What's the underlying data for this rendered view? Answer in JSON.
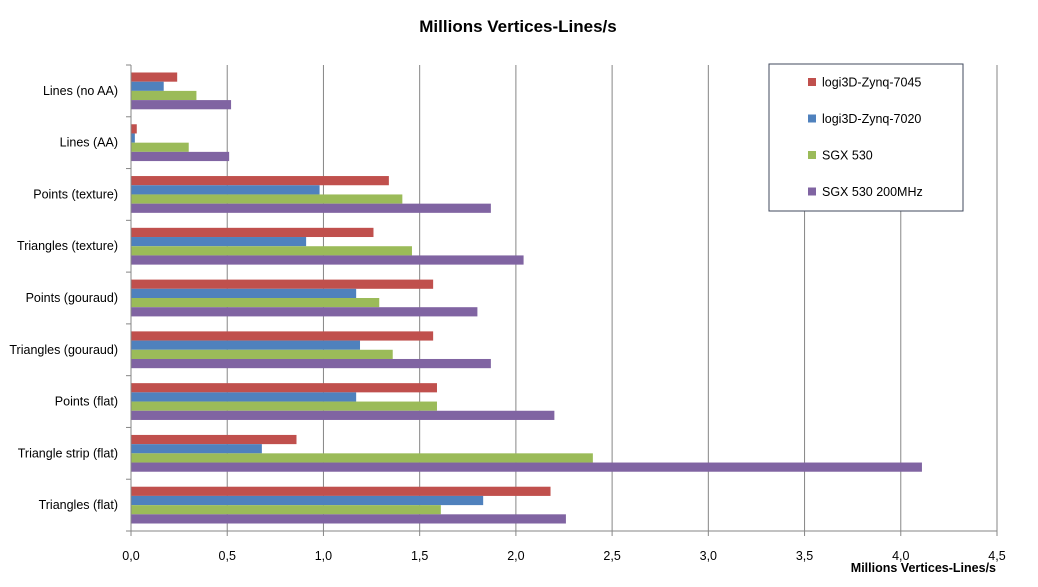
{
  "chart_data": {
    "type": "bar",
    "orientation": "horizontal",
    "title": "Millions Vertices-Lines/s",
    "xlabel": "Millions  Vertices-Lines/s",
    "ylabel": "",
    "xlim": [
      0,
      4.5
    ],
    "x_ticks": [
      0.0,
      0.5,
      1.0,
      1.5,
      2.0,
      2.5,
      3.0,
      3.5,
      4.0,
      4.5
    ],
    "x_tick_labels": [
      "0,0",
      "0,5",
      "1,0",
      "1,5",
      "2,0",
      "2,5",
      "3,0",
      "3,5",
      "4,0",
      "4,5"
    ],
    "grid": "vertical",
    "legend_position": "top-right",
    "categories": [
      "Lines (no AA)",
      "Lines (AA)",
      "Points (texture)",
      "Triangles (texture)",
      "Points (gouraud)",
      "Triangles (gouraud)",
      "Points (flat)",
      "Triangle strip (flat)",
      "Triangles (flat)"
    ],
    "series": [
      {
        "name": "logi3D-Zynq-7045",
        "color": "#c0504d",
        "values": [
          0.24,
          0.03,
          1.34,
          1.26,
          1.57,
          1.57,
          1.59,
          0.86,
          2.18
        ]
      },
      {
        "name": "logi3D-Zynq-7020",
        "color": "#4f81bd",
        "values": [
          0.17,
          0.02,
          0.98,
          0.91,
          1.17,
          1.19,
          1.17,
          0.68,
          1.83
        ]
      },
      {
        "name": "SGX 530",
        "color": "#9bbb59",
        "values": [
          0.34,
          0.3,
          1.41,
          1.46,
          1.29,
          1.36,
          1.59,
          2.4,
          1.61
        ]
      },
      {
        "name": "SGX 530 200MHz",
        "color": "#8064a2",
        "values": [
          0.52,
          0.51,
          1.87,
          2.04,
          1.8,
          1.87,
          2.2,
          4.11,
          2.26
        ]
      }
    ]
  }
}
